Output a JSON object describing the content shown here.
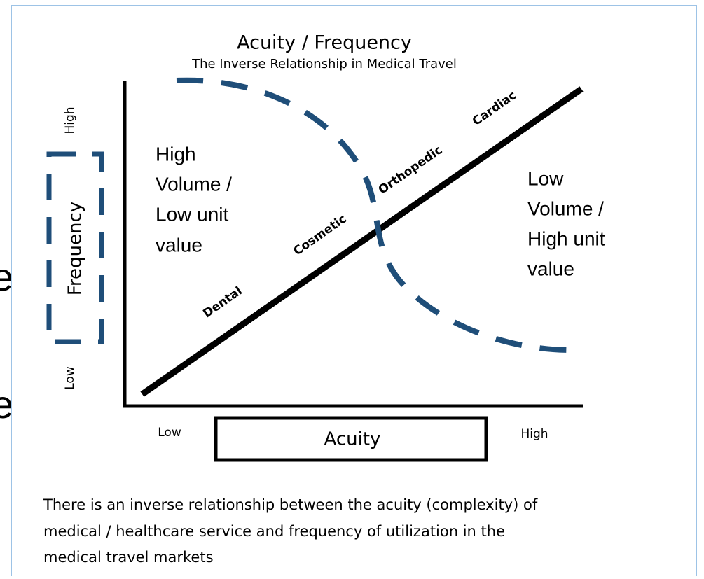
{
  "background_fragments": [
    "e",
    "e"
  ],
  "title": "Acuity / Frequency",
  "subtitle": "The Inverse Relationship in Medical Travel",
  "y_axis": {
    "label": "Frequency",
    "high": "High",
    "low": "Low"
  },
  "x_axis": {
    "label": "Acuity",
    "low": "Low",
    "high": "High"
  },
  "line_labels": [
    "Dental",
    "Cosmetic",
    "Orthopedic",
    "Cardiac"
  ],
  "regions": [
    {
      "lines": [
        "High",
        "Volume /",
        "Low unit",
        "value"
      ]
    },
    {
      "lines": [
        "Low",
        "Volume /",
        "High unit",
        "value"
      ]
    }
  ],
  "caption": [
    "There is an inverse relationship between the acuity (complexity) of",
    "medical / healthcare service and frequency of utilization in the",
    "medical travel markets"
  ]
}
